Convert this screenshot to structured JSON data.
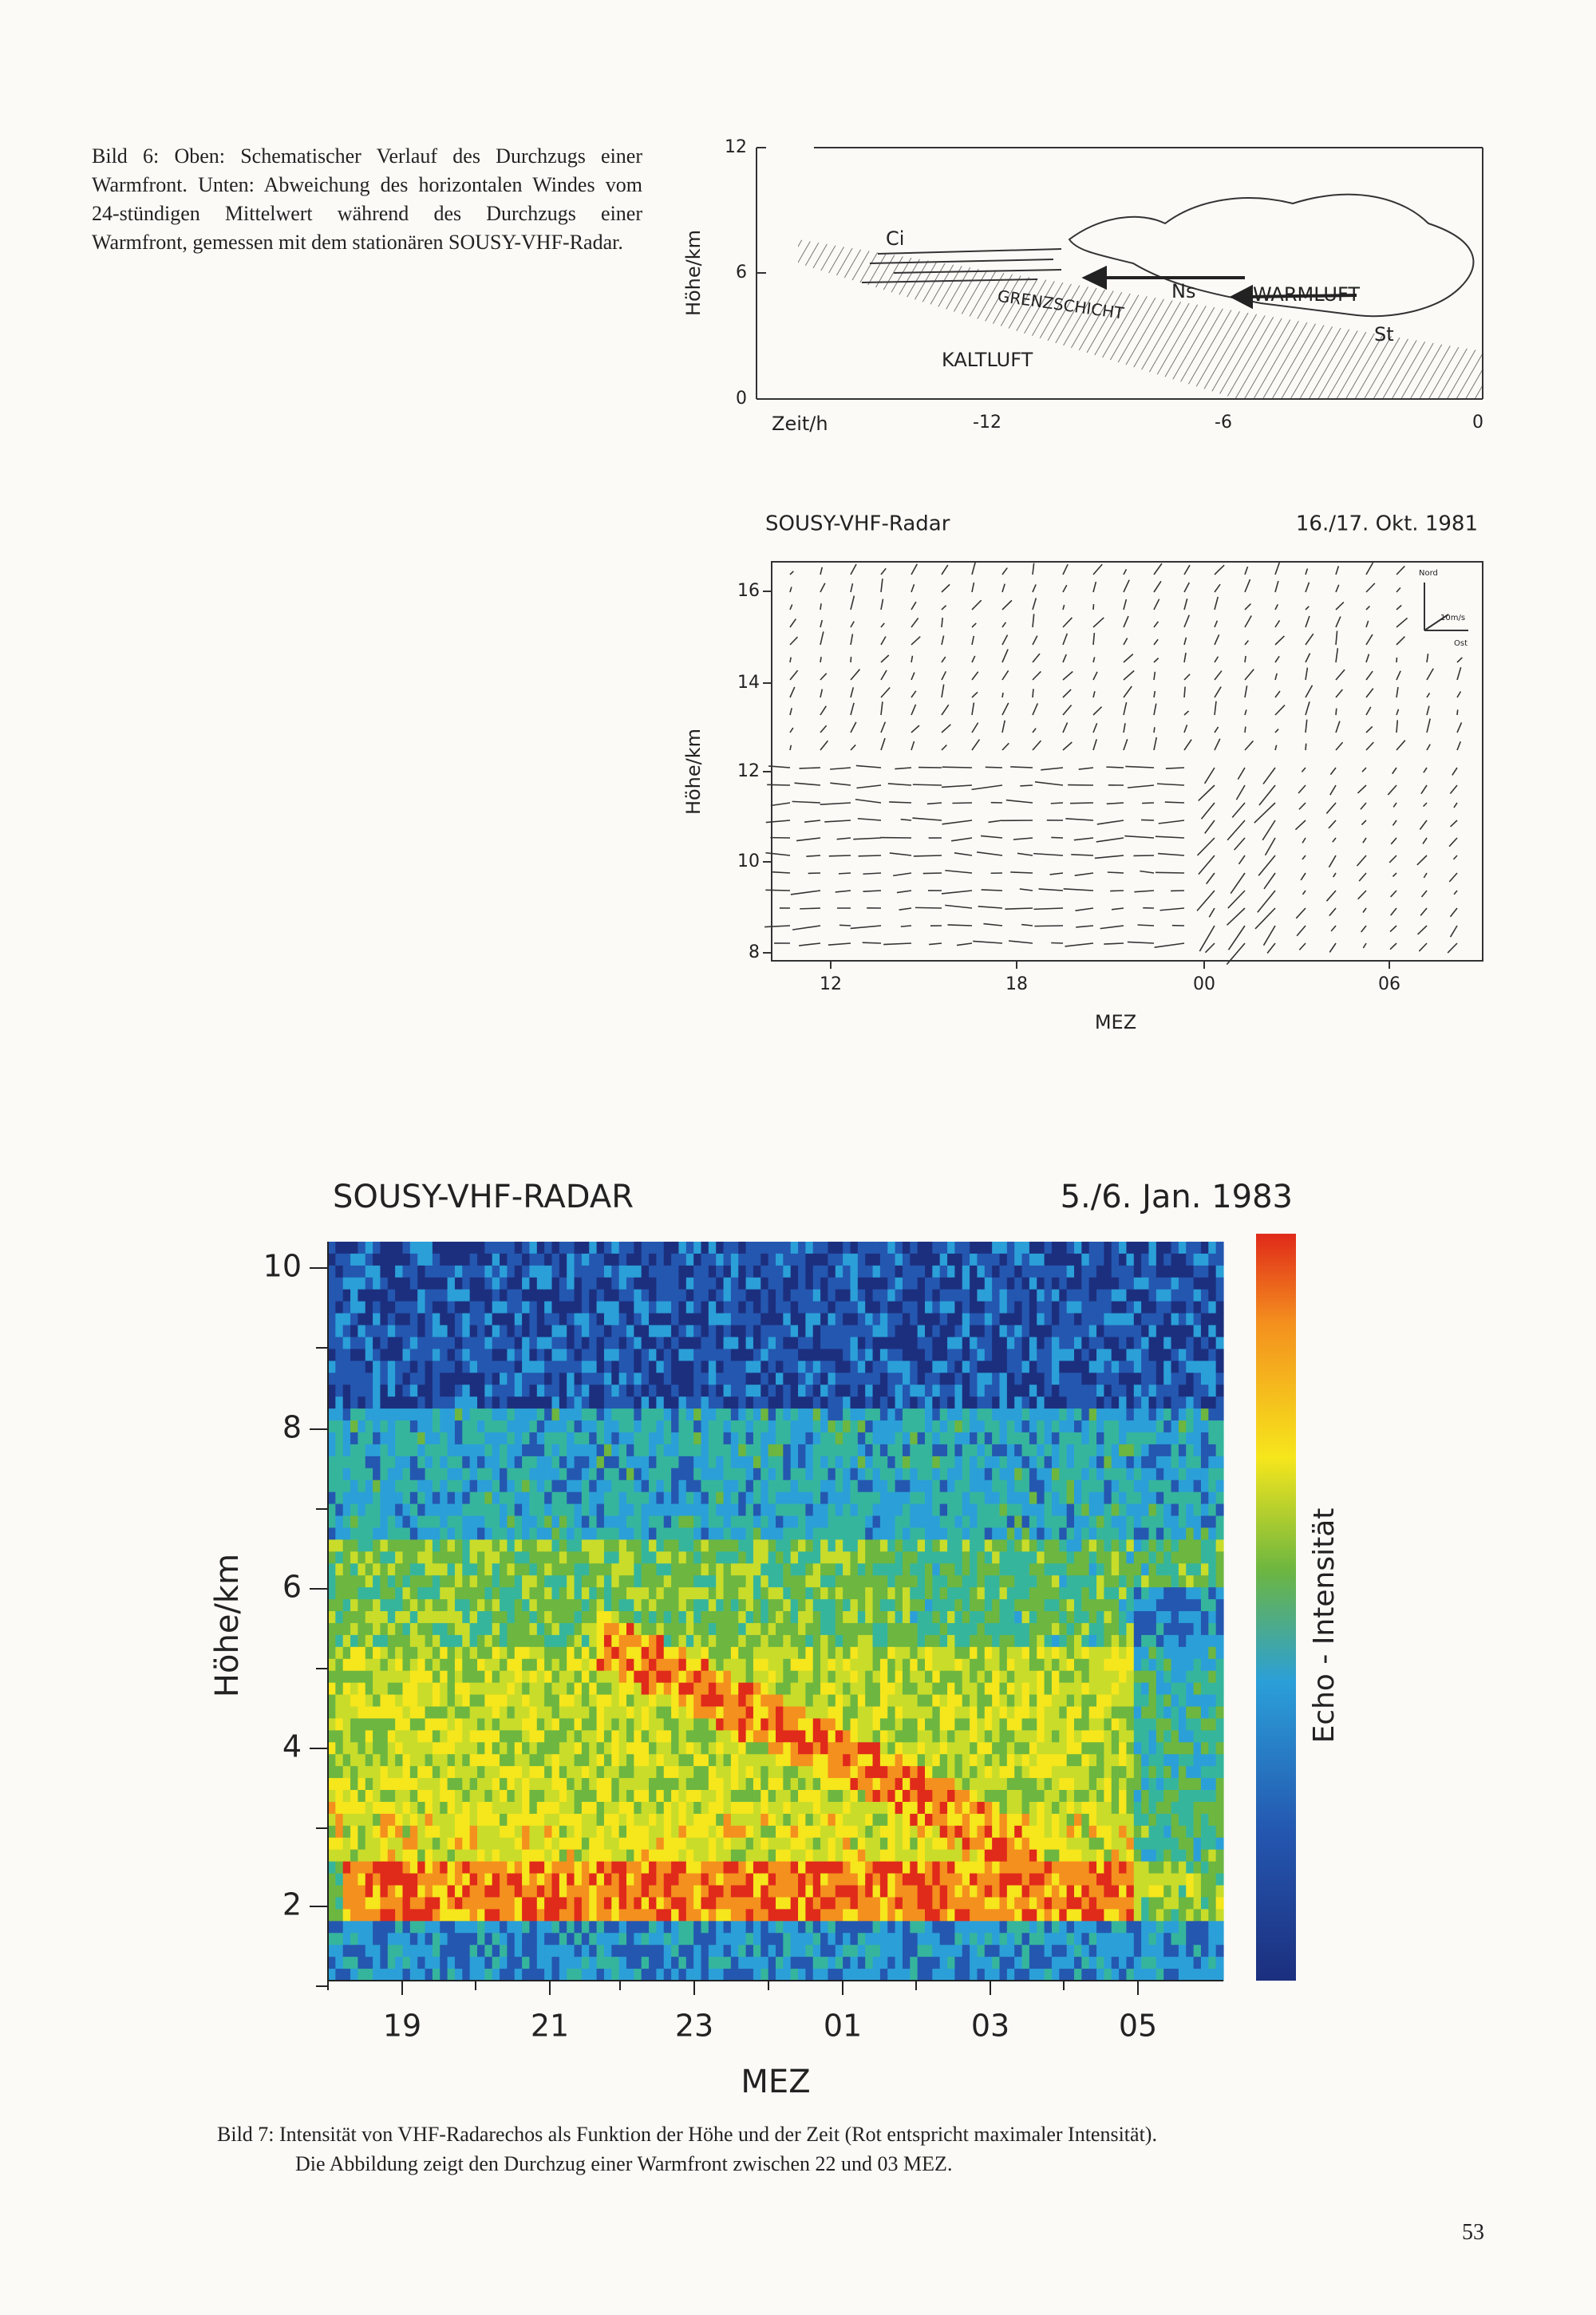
{
  "figure6": {
    "caption": "Bild 6: Oben: Schematischer Verlauf des Durchzugs einer Warmfront. Unten: Abweichung des horizontalen Windes vom 24-stündigen Mittelwert während des Durchzugs einer Warmfront, gemessen mit dem stationären SOUSY-VHF-Radar.",
    "top": {
      "y_label": "Höhe/km",
      "y_ticks": [
        "12",
        "6",
        "0"
      ],
      "x_label": "Zeit/h",
      "x_ticks": [
        "-12",
        "-6",
        "0"
      ],
      "labels": [
        "Ci",
        "GRENZSCHICHT",
        "Ns",
        "WARMLUFT",
        "St",
        "KALTLUFT"
      ]
    },
    "bottom": {
      "title": "SOUSY-VHF-Radar",
      "date": "16./17. Okt. 1981",
      "y_label": "Höhe/km",
      "y_ticks": [
        "16",
        "14",
        "12",
        "10",
        "8"
      ],
      "x_label": "MEZ",
      "x_ticks": [
        "12",
        "18",
        "00",
        "06"
      ],
      "compass": [
        "Nord",
        "10m/s",
        "Ost"
      ]
    }
  },
  "figure7": {
    "title": "SOUSY-VHF-RADAR",
    "date": "5./6. Jan. 1983",
    "y_label": "Höhe/km",
    "y_ticks": [
      "10",
      "8",
      "6",
      "4",
      "2"
    ],
    "x_label": "MEZ",
    "x_ticks": [
      "19",
      "21",
      "23",
      "01",
      "03",
      "05"
    ],
    "colorbar_label": "Echo - Intensität",
    "caption_line1": "Bild 7: Intensität von VHF-Radarechos als Funktion der Höhe und der Zeit (Rot entspricht maximaler Intensität).",
    "caption_line2": "Die Abbildung zeigt den Durchzug einer Warmfront zwischen 22 und 03 MEZ."
  },
  "page_number": "53"
}
